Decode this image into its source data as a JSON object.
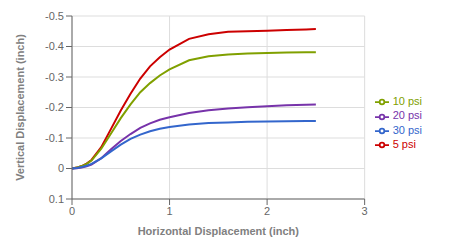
{
  "chart_data": {
    "type": "line",
    "xlabel": "Horizontal Displacement (inch)",
    "ylabel": "Vertical Displacement (inch)",
    "xlim": [
      0,
      3
    ],
    "ylim": [
      0.1,
      -0.5
    ],
    "xticks": [
      0,
      1,
      2,
      3
    ],
    "yticks": [
      -0.5,
      -0.4,
      -0.3,
      -0.2,
      -0.1,
      0,
      0.1
    ],
    "grid": true,
    "legend": "right",
    "x": [
      0,
      0.05,
      0.1,
      0.15,
      0.2,
      0.3,
      0.4,
      0.5,
      0.6,
      0.7,
      0.8,
      0.9,
      1.0,
      1.2,
      1.4,
      1.6,
      1.8,
      2.0,
      2.2,
      2.4,
      2.5
    ],
    "series": [
      {
        "name": "5 psi",
        "color": "#cc0000",
        "values": [
          0,
          -0.003,
          -0.008,
          -0.016,
          -0.028,
          -0.07,
          -0.13,
          -0.19,
          -0.245,
          -0.295,
          -0.335,
          -0.365,
          -0.39,
          -0.425,
          -0.44,
          -0.448,
          -0.45,
          -0.452,
          -0.454,
          -0.456,
          -0.457
        ]
      },
      {
        "name": "10 psi",
        "color": "#80a000",
        "values": [
          0,
          -0.003,
          -0.008,
          -0.015,
          -0.026,
          -0.065,
          -0.115,
          -0.165,
          -0.21,
          -0.25,
          -0.28,
          -0.305,
          -0.325,
          -0.355,
          -0.368,
          -0.374,
          -0.377,
          -0.379,
          -0.38,
          -0.381,
          -0.381
        ]
      },
      {
        "name": "20 psi",
        "color": "#7733aa",
        "values": [
          0,
          -0.001,
          -0.003,
          -0.007,
          -0.013,
          -0.034,
          -0.063,
          -0.09,
          -0.113,
          -0.133,
          -0.148,
          -0.16,
          -0.168,
          -0.182,
          -0.191,
          -0.197,
          -0.201,
          -0.204,
          -0.207,
          -0.209,
          -0.21
        ]
      },
      {
        "name": "30 psi",
        "color": "#3366cc",
        "values": [
          0,
          -0.002,
          -0.005,
          -0.009,
          -0.015,
          -0.033,
          -0.056,
          -0.078,
          -0.097,
          -0.111,
          -0.122,
          -0.13,
          -0.136,
          -0.144,
          -0.149,
          -0.151,
          -0.153,
          -0.154,
          -0.155,
          -0.156,
          -0.156
        ]
      }
    ]
  }
}
